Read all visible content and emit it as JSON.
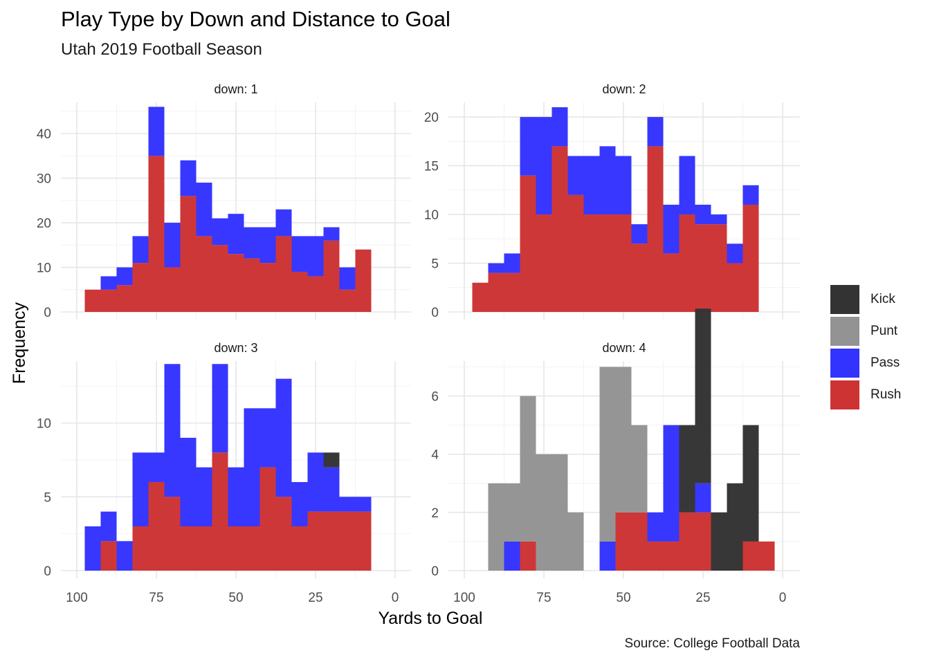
{
  "title": "Play Type by Down and Distance to Goal",
  "subtitle": "Utah 2019 Football Season",
  "caption": "Source: College Football Data",
  "chart_data": {
    "type": "bar",
    "subtype": "faceted stacked histogram",
    "xlabel": "Yards to Goal",
    "ylabel": "Frequency",
    "x_reversed": true,
    "xlim": [
      100,
      0
    ],
    "x_ticks": [
      100,
      75,
      50,
      25,
      0
    ],
    "bin_centers": [
      95,
      90,
      85,
      80,
      75,
      70,
      65,
      60,
      55,
      50,
      45,
      40,
      35,
      30,
      25,
      20,
      15,
      10,
      5
    ],
    "stack_order": [
      "Rush",
      "Pass",
      "Punt",
      "Kick"
    ],
    "colors": {
      "Kick": "#333333",
      "Punt": "#939393",
      "Pass": "#3333ff",
      "Rush": "#cd3333"
    },
    "legend": [
      "Kick",
      "Punt",
      "Pass",
      "Rush"
    ],
    "legend_position": "right",
    "grid": true,
    "facets": [
      {
        "label": "down: 1",
        "ylim": [
          0,
          47
        ],
        "y_ticks": [
          0,
          10,
          20,
          30,
          40
        ],
        "series": [
          {
            "name": "Rush",
            "values": [
              5,
              5,
              6,
              11,
              35,
              10,
              26,
              17,
              15,
              13,
              12,
              11,
              17,
              9,
              8,
              16,
              5,
              14,
              0
            ]
          },
          {
            "name": "Pass",
            "values": [
              0,
              3,
              4,
              6,
              11,
              10,
              8,
              12,
              6,
              9,
              7,
              8,
              6,
              8,
              9,
              3,
              5,
              0,
              0
            ]
          },
          {
            "name": "Punt",
            "values": [
              0,
              0,
              0,
              0,
              0,
              0,
              0,
              0,
              0,
              0,
              0,
              0,
              0,
              0,
              0,
              0,
              0,
              0,
              0
            ]
          },
          {
            "name": "Kick",
            "values": [
              0,
              0,
              0,
              0,
              0,
              0,
              0,
              0,
              0,
              0,
              0,
              0,
              0,
              0,
              0,
              0,
              0,
              0,
              0
            ]
          }
        ]
      },
      {
        "label": "down: 2",
        "ylim": [
          0,
          21.5
        ],
        "y_ticks": [
          0,
          5,
          10,
          15,
          20
        ],
        "series": [
          {
            "name": "Rush",
            "values": [
              3,
              4,
              4,
              14,
              10,
              17,
              12,
              10,
              10,
              10,
              7,
              17,
              6,
              10,
              9,
              9,
              5,
              11,
              0
            ]
          },
          {
            "name": "Pass",
            "values": [
              0,
              1,
              2,
              6,
              10,
              4,
              4,
              6,
              7,
              6,
              2,
              3,
              5,
              6,
              2,
              1,
              2,
              2,
              0
            ]
          },
          {
            "name": "Punt",
            "values": [
              0,
              0,
              0,
              0,
              0,
              0,
              0,
              0,
              0,
              0,
              0,
              0,
              0,
              0,
              0,
              0,
              0,
              0,
              0
            ]
          },
          {
            "name": "Kick",
            "values": [
              0,
              0,
              0,
              0,
              0,
              0,
              0,
              0,
              0,
              0,
              0,
              0,
              0,
              0,
              0,
              0,
              0,
              0,
              0
            ]
          }
        ]
      },
      {
        "label": "down: 3",
        "ylim": [
          0,
          14.2
        ],
        "y_ticks": [
          0,
          5,
          10
        ],
        "series": [
          {
            "name": "Rush",
            "values": [
              0,
              2,
              0,
              3,
              6,
              5,
              3,
              3,
              8,
              3,
              3,
              7,
              5,
              3,
              4,
              4,
              4,
              4,
              0
            ]
          },
          {
            "name": "Pass",
            "values": [
              3,
              2,
              2,
              5,
              2,
              9,
              6,
              4,
              6,
              4,
              8,
              4,
              8,
              3,
              4,
              3,
              1,
              1,
              0
            ]
          },
          {
            "name": "Punt",
            "values": [
              0,
              0,
              0,
              0,
              0,
              0,
              0,
              0,
              0,
              0,
              0,
              0,
              0,
              0,
              0,
              0,
              0,
              0,
              0
            ]
          },
          {
            "name": "Kick",
            "values": [
              0,
              0,
              0,
              0,
              0,
              0,
              0,
              0,
              0,
              0,
              0,
              0,
              0,
              0,
              0,
              1,
              0,
              0,
              0
            ]
          }
        ]
      },
      {
        "label": "down: 4",
        "ylim": [
          0,
          7.2
        ],
        "y_ticks": [
          0,
          2,
          4,
          6
        ],
        "series": [
          {
            "name": "Rush",
            "values": [
              0,
              0,
              0,
              1,
              0,
              0,
              0,
              0,
              0,
              2,
              2,
              1,
              1,
              2,
              2,
              0,
              0,
              1,
              1
            ]
          },
          {
            "name": "Pass",
            "values": [
              0,
              0,
              1,
              0,
              0,
              0,
              0,
              0,
              1,
              0,
              0,
              1,
              4,
              0,
              1,
              0,
              0,
              0,
              0
            ]
          },
          {
            "name": "Punt",
            "values": [
              0,
              3,
              2,
              5,
              4,
              4,
              2,
              0,
              6,
              5,
              3,
              0,
              0,
              0,
              0,
              0,
              0,
              0,
              0
            ]
          },
          {
            "name": "Kick",
            "values": [
              0,
              0,
              0,
              0,
              0,
              0,
              0,
              0,
              0,
              0,
              0,
              0,
              0,
              3,
              6,
              2,
              3,
              4,
              0
            ]
          }
        ]
      }
    ]
  }
}
